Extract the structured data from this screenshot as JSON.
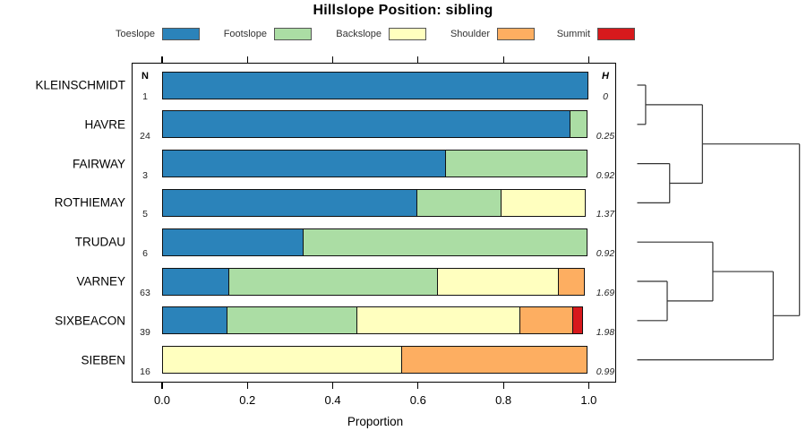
{
  "title": "Hillslope Position: sibling",
  "chart_data": {
    "type": "bar",
    "variant": "horizontal stacked proportion bars with N/H columns and right-side cluster dendrogram",
    "title": "Hillslope Position: sibling",
    "xlabel": "Proportion",
    "xlim": [
      0,
      1
    ],
    "xticks": [
      "0.0",
      "0.2",
      "0.4",
      "0.6",
      "0.8",
      "1.0"
    ],
    "grid": false,
    "legend_position": "top",
    "legend": [
      "Toeslope",
      "Footslope",
      "Backslope",
      "Shoulder",
      "Summit"
    ],
    "colors": [
      "#2B83BA",
      "#ABDDA4",
      "#FFFFBF",
      "#FDAE61",
      "#D7191C"
    ],
    "n_header": "N",
    "h_header": "H",
    "rows": [
      {
        "label": "KLEINSCHMIDT",
        "n": "1",
        "h": "0",
        "proportions": [
          1,
          0,
          0,
          0,
          0
        ]
      },
      {
        "label": "HAVRE",
        "n": "24",
        "h": "0.25",
        "proportions": [
          0.958,
          0.042,
          0,
          0,
          0
        ]
      },
      {
        "label": "FAIRWAY",
        "n": "3",
        "h": "0.92",
        "proportions": [
          0.667,
          0.333,
          0,
          0,
          0
        ]
      },
      {
        "label": "ROTHIEMAY",
        "n": "5",
        "h": "1.37",
        "proportions": [
          0.6,
          0.2,
          0.2,
          0,
          0
        ]
      },
      {
        "label": "TRUDAU",
        "n": "6",
        "h": "0.92",
        "proportions": [
          0.333,
          0.667,
          0,
          0,
          0
        ]
      },
      {
        "label": "VARNEY",
        "n": "63",
        "h": "1.69",
        "proportions": [
          0.159,
          0.492,
          0.286,
          0.063,
          0
        ]
      },
      {
        "label": "SIXBEACON",
        "n": "39",
        "h": "1.98",
        "proportions": [
          0.154,
          0.308,
          0.384,
          0.128,
          0.026
        ]
      },
      {
        "label": "SIEBEN",
        "n": "16",
        "h": "0.99",
        "proportions": [
          0,
          0,
          0.563,
          0.437,
          0
        ]
      }
    ],
    "dendrogram": {
      "merges": [
        {
          "id": "m1",
          "children": [
            "leaf:0",
            "leaf:1"
          ],
          "x": 0.052
        },
        {
          "id": "m2",
          "children": [
            "leaf:2",
            "leaf:3"
          ],
          "x": 0.2
        },
        {
          "id": "m3",
          "children": [
            "m1",
            "m2"
          ],
          "x": 0.402
        },
        {
          "id": "m4",
          "children": [
            "leaf:5",
            "leaf:6"
          ],
          "x": 0.185
        },
        {
          "id": "m5",
          "children": [
            "leaf:4",
            "m4"
          ],
          "x": 0.466
        },
        {
          "id": "m6",
          "children": [
            "m5",
            "leaf:7"
          ],
          "x": 0.838
        },
        {
          "id": "root",
          "children": [
            "m3",
            "m6"
          ],
          "x": 1.0
        }
      ]
    }
  }
}
